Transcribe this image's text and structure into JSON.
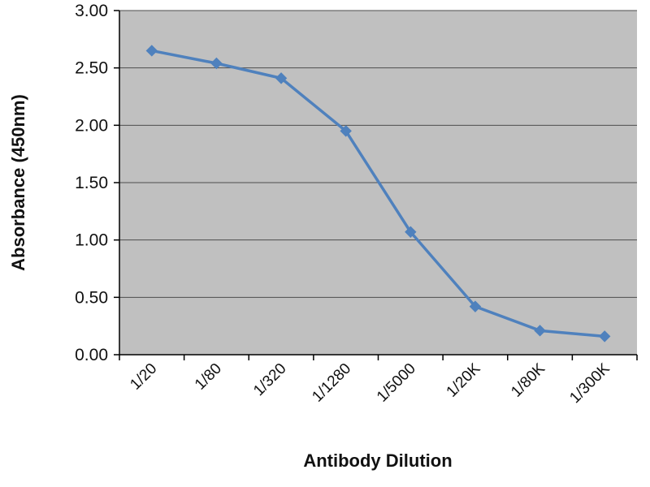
{
  "chart_data": {
    "type": "line",
    "title": "",
    "xlabel": "Antibody Dilution",
    "ylabel": "Absorbance (450nm)",
    "categories": [
      "1/20",
      "1/80",
      "1/320",
      "1/1280",
      "1/5000",
      "1/20K",
      "1/80K",
      "1/300K"
    ],
    "series": [
      {
        "name": "Absorbance",
        "values": [
          2.65,
          2.54,
          2.41,
          1.95,
          1.07,
          0.42,
          0.21,
          0.16
        ]
      }
    ],
    "ylim": [
      0,
      3
    ],
    "ytick_step": 0.5,
    "ytick_labels": [
      "0.00",
      "0.50",
      "1.00",
      "1.50",
      "2.00",
      "2.50",
      "3.00"
    ],
    "grid": "horizontal",
    "legend": "none",
    "marker": "diamond",
    "colors": {
      "line": "#4f81bd",
      "plot_bg": "#c0c0c0",
      "grid": "#4d4d4d",
      "axis": "#000000",
      "text": "#111111"
    }
  }
}
